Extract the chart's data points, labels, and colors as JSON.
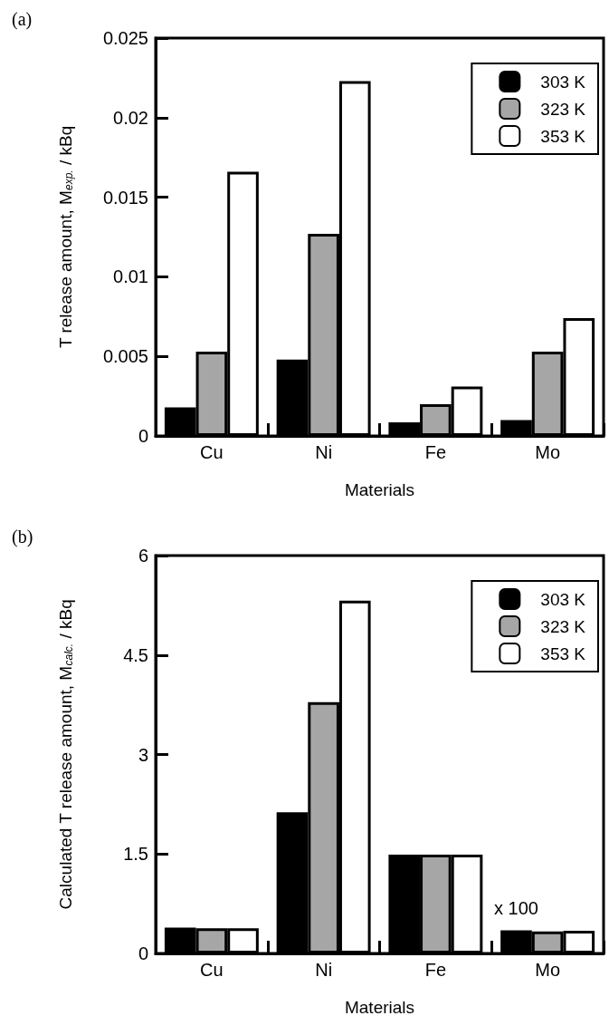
{
  "chart_data": [
    {
      "type": "bar",
      "title": "(a)",
      "xlabel": "Materials",
      "ylabel": "T release amount, M$_{exp.}$ / kBq",
      "categories": [
        "Cu",
        "Ni",
        "Fe",
        "Mo"
      ],
      "series": [
        {
          "name": "303 K",
          "color": "#000000",
          "values": [
            0.0018,
            0.0048,
            0.00085,
            0.001
          ]
        },
        {
          "name": "323 K",
          "color": "#a6a6a6",
          "values": [
            0.0053,
            0.0127,
            0.002,
            0.0053
          ]
        },
        {
          "name": "353 K",
          "color": "#ffffff",
          "values": [
            0.0166,
            0.0223,
            0.0031,
            0.0074
          ]
        }
      ],
      "ylim": [
        0,
        0.025
      ],
      "yticks": [
        0,
        0.005,
        0.01,
        0.015,
        0.02,
        0.025
      ],
      "grid": false,
      "legend": "top right"
    },
    {
      "type": "bar",
      "title": "(b)",
      "xlabel": "Materials",
      "ylabel": "Calculated T release amount, M$_{calc.}$ / kBq",
      "categories": [
        "Cu",
        "Ni",
        "Fe",
        "Mo"
      ],
      "series": [
        {
          "name": "303 K",
          "color": "#000000",
          "values": [
            0.39,
            2.13,
            1.49,
            0.35
          ]
        },
        {
          "name": "323 K",
          "color": "#a6a6a6",
          "values": [
            0.38,
            3.79,
            1.49,
            0.33
          ]
        },
        {
          "name": "353 K",
          "color": "#ffffff",
          "values": [
            0.38,
            5.32,
            1.49,
            0.34
          ]
        }
      ],
      "ylim": [
        0,
        6
      ],
      "yticks": [
        0,
        1.5,
        3,
        4.5,
        6
      ],
      "grid": false,
      "legend": "top right",
      "annotations": [
        {
          "text": "x 100",
          "x": "Mo",
          "y": 0.35
        }
      ]
    }
  ]
}
